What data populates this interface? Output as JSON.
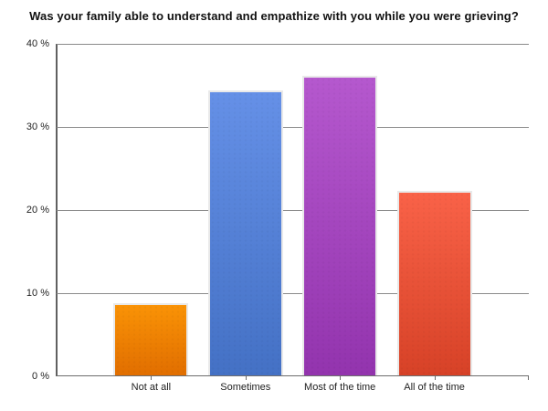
{
  "title": "Was your family able to understand and empathize with you while you were grieving?",
  "chart_data": {
    "type": "bar",
    "title": "Was your family able to understand and empathize with you while you were grieving?",
    "categories": [
      "Not at all",
      "Sometimes",
      "Most of the time",
      "All of the time"
    ],
    "values": [
      8.7,
      34.3,
      36.0,
      22.2
    ],
    "unit": "%",
    "xlabel": "",
    "ylabel": "",
    "ylim": [
      0,
      40
    ],
    "y_ticks": [
      {
        "v": 0,
        "label": "0 %"
      },
      {
        "v": 10,
        "label": "10 %"
      },
      {
        "v": 20,
        "label": "20 %"
      },
      {
        "v": 30,
        "label": "30 %"
      },
      {
        "v": 40,
        "label": "40 %"
      }
    ],
    "grid": true,
    "legend": "none",
    "bar_colors": [
      {
        "top": "#FA9306",
        "bottom": "#E16E00"
      },
      {
        "top": "#6590E7",
        "bottom": "#4471C5"
      },
      {
        "top": "#B558CE",
        "bottom": "#9334AE"
      },
      {
        "top": "#F96248",
        "bottom": "#D74227"
      }
    ],
    "axis_color": "#606060",
    "grid_color": "#8a8a8a",
    "label_color": "#222222",
    "background_color": "#ffffff"
  }
}
